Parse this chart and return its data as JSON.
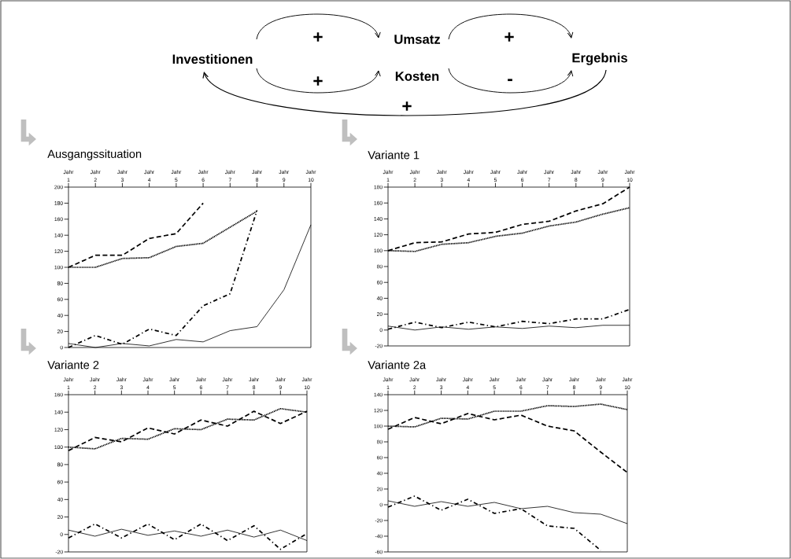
{
  "chart_data": [
    {
      "type": "other",
      "annotations": [
        "Investitionen",
        "Umsatz",
        "Kosten",
        "Ergebnis",
        "+",
        "+",
        "+",
        "-",
        "+"
      ]
    },
    {
      "type": "line",
      "title": "Ausgangssituation",
      "categories": [
        "Jahr 1",
        "Jahr 2",
        "Jahr 3",
        "Jahr 4",
        "Jahr 5",
        "Jahr 6",
        "Jahr 7",
        "Jahr 8",
        "Jahr 9",
        "Jahr 10"
      ],
      "ylim": [
        0,
        200
      ],
      "yticks": [
        0,
        20,
        40,
        60,
        80,
        100,
        120,
        140,
        160,
        180,
        200
      ],
      "marker": "none",
      "series": [
        {
          "color": "#000000",
          "line_style": "dashed",
          "values": [
            100,
            115,
            115,
            136,
            142,
            180,
            null,
            null,
            null,
            null
          ]
        },
        {
          "color": "#000000",
          "line_style": "dotted",
          "values": [
            100,
            100,
            111,
            112,
            126,
            130,
            150,
            170,
            null,
            null
          ]
        },
        {
          "color": "#000000",
          "line_style": "dashdot",
          "values": [
            0,
            15,
            4,
            23,
            15,
            52,
            67,
            171,
            null,
            null
          ]
        },
        {
          "color": "#000000",
          "line_style": "solid",
          "values": [
            5,
            0,
            5,
            2,
            10,
            7,
            21,
            26,
            72,
            153
          ]
        }
      ]
    },
    {
      "type": "line",
      "title": "Variante 1",
      "categories": [
        "Jahr 1",
        "Jahr 2",
        "Jahr 3",
        "Jahr 4",
        "Jahr 5",
        "Jahr 6",
        "Jahr 7",
        "Jahr 8",
        "Jahr 9",
        "Jahr 10"
      ],
      "ylim": [
        -20,
        180
      ],
      "yticks": [
        -20,
        0,
        20,
        40,
        60,
        80,
        100,
        120,
        140,
        160,
        180
      ],
      "marker": "none",
      "series": [
        {
          "color": "#000000",
          "line_style": "dashed",
          "values": [
            100,
            110,
            111,
            121,
            123,
            133,
            137,
            150,
            159,
            180
          ]
        },
        {
          "color": "#000000",
          "line_style": "dotted",
          "values": [
            100,
            99,
            108,
            110,
            118,
            122,
            131,
            136,
            146,
            154
          ]
        },
        {
          "color": "#000000",
          "line_style": "dashdot",
          "values": [
            1,
            10,
            3,
            10,
            4,
            11,
            8,
            14,
            14,
            26
          ]
        },
        {
          "color": "#000000",
          "line_style": "solid",
          "values": [
            5,
            0,
            4,
            1,
            4,
            2,
            5,
            3,
            6,
            6
          ]
        }
      ]
    },
    {
      "type": "line",
      "title": "Variante 2",
      "categories": [
        "Jahr 1",
        "Jahr 2",
        "Jahr 3",
        "Jahr 4",
        "Jahr 5",
        "Jahr 6",
        "Jahr 7",
        "Jahr 8",
        "Jahr 9",
        "Jahr 10"
      ],
      "ylim": [
        -20,
        160
      ],
      "yticks": [
        -20,
        0,
        20,
        40,
        60,
        80,
        100,
        120,
        140,
        160
      ],
      "marker": "none",
      "series": [
        {
          "color": "#000000",
          "line_style": "dashed",
          "values": [
            96,
            111,
            106,
            122,
            115,
            131,
            124,
            141,
            127,
            141
          ]
        },
        {
          "color": "#000000",
          "line_style": "dotted",
          "values": [
            100,
            98,
            110,
            109,
            121,
            120,
            132,
            131,
            144,
            140
          ]
        },
        {
          "color": "#000000",
          "line_style": "dashdot",
          "values": [
            -4,
            12,
            -4,
            12,
            -6,
            12,
            -7,
            10,
            -17,
            1
          ]
        },
        {
          "color": "#000000",
          "line_style": "solid",
          "values": [
            5,
            -2,
            6,
            -1,
            4,
            -2,
            5,
            -3,
            5,
            -7
          ]
        }
      ]
    },
    {
      "type": "line",
      "title": "Variante 2a",
      "categories": [
        "Jahr 1",
        "Jahr 2",
        "Jahr 3",
        "Jahr 4",
        "Jahr 5",
        "Jahr 6",
        "Jahr 7",
        "Jahr 8",
        "Jahr 9",
        "Jahr 10"
      ],
      "ylim": [
        -60,
        140
      ],
      "yticks": [
        -60,
        -40,
        -20,
        0,
        20,
        40,
        60,
        80,
        100,
        120,
        140
      ],
      "marker": "none",
      "series": [
        {
          "color": "#000000",
          "line_style": "dashed",
          "values": [
            96,
            111,
            103,
            116,
            108,
            114,
            100,
            94,
            67,
            41
          ]
        },
        {
          "color": "#000000",
          "line_style": "dotted",
          "values": [
            100,
            99,
            110,
            109,
            119,
            119,
            126,
            125,
            128,
            121
          ]
        },
        {
          "color": "#000000",
          "line_style": "dashdot",
          "values": [
            -3,
            11,
            -7,
            7,
            -11,
            -5,
            -27,
            -30,
            -58,
            null
          ]
        },
        {
          "color": "#000000",
          "line_style": "solid",
          "values": [
            5,
            -2,
            4,
            -2,
            3,
            -5,
            -2,
            -10,
            -12,
            -24
          ]
        }
      ]
    }
  ]
}
